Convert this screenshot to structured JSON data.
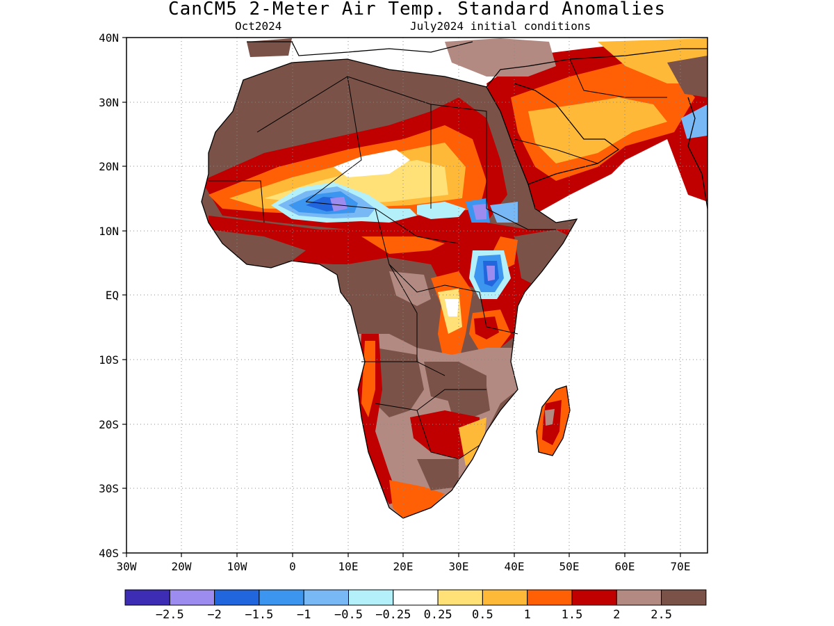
{
  "title": "CanCM5 2-Meter Air Temp. Standard Anomalies",
  "subtitle_left": "Oct2024",
  "subtitle_right": "July2024 initial conditions",
  "lat_labels": [
    "40N",
    "30N",
    "20N",
    "10N",
    "EQ",
    "10S",
    "20S",
    "30S",
    "40S"
  ],
  "lon_labels": [
    "30W",
    "20W",
    "10W",
    "0",
    "10E",
    "20E",
    "30E",
    "40E",
    "50E",
    "60E",
    "70E"
  ],
  "colorbar": {
    "colors": [
      "#3d2db4",
      "#9d8cf0",
      "#2266dd",
      "#3c96f0",
      "#78b9f5",
      "#b4f0fa",
      "#ffffff",
      "#ffe178",
      "#ffb938",
      "#ff5f05",
      "#c00000",
      "#b38a82",
      "#7a5248"
    ],
    "labels": [
      "-2.5",
      "-2",
      "-1.5",
      "-1",
      "-0.5",
      "-0.25",
      "0.25",
      "0.5",
      "1",
      "1.5",
      "2",
      "2.5"
    ]
  },
  "regions": [
    {
      "name": "sahara",
      "color": "#7a5248"
    },
    {
      "name": "sahel-warm",
      "color": "#c00000"
    },
    {
      "name": "sahel-cool",
      "color": "#3c96f0"
    },
    {
      "name": "central-africa",
      "color": "#7a5248"
    },
    {
      "name": "east-africa-cool",
      "color": "#2266dd"
    },
    {
      "name": "southern-africa",
      "color": "#b38a82"
    },
    {
      "name": "arabia",
      "color": "#ffb938"
    },
    {
      "name": "madagascar",
      "color": "#c00000"
    }
  ]
}
